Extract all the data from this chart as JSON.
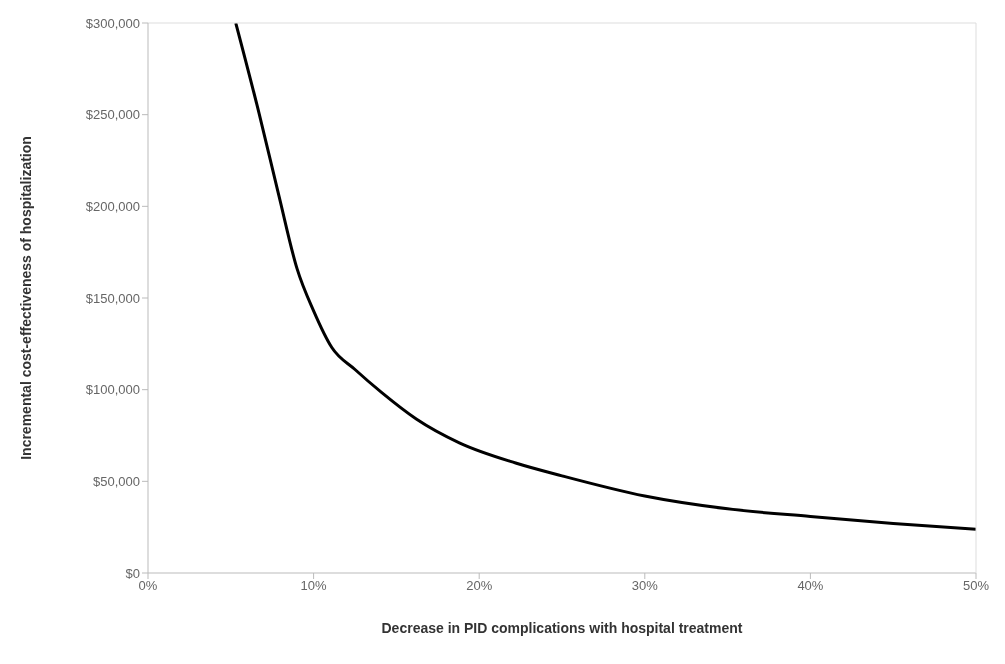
{
  "chart_data": {
    "type": "line",
    "xlabel": "Decrease in PID complications with hospital treatment",
    "ylabel": "Incremental cost-effectiveness of hospitalization",
    "x": [
      5.3,
      6.7,
      7.9,
      9,
      10,
      11.1,
      12.5,
      14.1,
      16.2,
      18.8,
      22.2,
      25,
      30,
      35,
      40,
      45,
      50
    ],
    "series": [
      {
        "color": "#000000",
        "values": [
          300000,
          251000,
          206000,
          166000,
          143000,
          123000,
          111000,
          98500,
          84000,
          71000,
          60000,
          53000,
          42000,
          35000,
          30800,
          27000,
          23800
        ]
      }
    ],
    "xlim": [
      0,
      50
    ],
    "xticks": [
      {
        "value": 0,
        "label": "0%"
      },
      {
        "value": 10,
        "label": "10%"
      },
      {
        "value": 20,
        "label": "20%"
      },
      {
        "value": 30,
        "label": "30%"
      },
      {
        "value": 40,
        "label": "40%"
      },
      {
        "value": 50,
        "label": "50%"
      }
    ],
    "ylim": [
      0,
      300000
    ],
    "yticks": [
      {
        "value": 0,
        "label": "$0"
      },
      {
        "value": 50000,
        "label": "$50,000"
      },
      {
        "value": 100000,
        "label": "$100,000"
      },
      {
        "value": 150000,
        "label": "$150,000"
      },
      {
        "value": 200000,
        "label": "$200,000"
      },
      {
        "value": 250000,
        "label": "$250,000"
      },
      {
        "value": 300000,
        "label": "$300,000"
      }
    ],
    "marker": "none",
    "line_style": "solid",
    "legend": false
  }
}
